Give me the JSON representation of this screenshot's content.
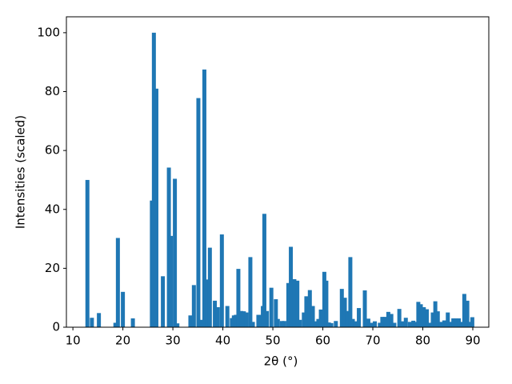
{
  "chart_data": {
    "type": "bar",
    "xlabel": "2θ (°)",
    "ylabel": "Intensities (scaled)",
    "color": "#1f77b4",
    "x": [
      12.9,
      13.8,
      15.2,
      18.5,
      19.0,
      20.0,
      22.0,
      25.8,
      26.2,
      26.7,
      28.0,
      29.2,
      29.6,
      30.4,
      30.9,
      33.5,
      34.2,
      35.1,
      35.6,
      36.3,
      36.9,
      37.4,
      38.4,
      39.0,
      39.8,
      40.9,
      41.8,
      42.2,
      42.6,
      43.1,
      43.7,
      44.2,
      44.7,
      45.5,
      46.0,
      47.1,
      47.6,
      48.0,
      48.3,
      48.8,
      49.7,
      50.6,
      51.0,
      51.8,
      52.3,
      53.1,
      53.6,
      54.3,
      54.9,
      55.4,
      56.2,
      56.7,
      57.4,
      58.0,
      58.6,
      59.1,
      59.6,
      60.3,
      60.7,
      61.2,
      61.7,
      62.6,
      63.8,
      64.4,
      64.9,
      65.5,
      66.0,
      66.5,
      67.2,
      68.4,
      69.1,
      69.7,
      70.4,
      71.4,
      71.9,
      72.5,
      73.1,
      73.7,
      74.3,
      75.3,
      76.0,
      76.6,
      77.4,
      78.1,
      78.6,
      79.1,
      79.6,
      80.2,
      80.8,
      81.5,
      82.0,
      82.5,
      83.0,
      83.6,
      84.3,
      85.0,
      85.6,
      86.1,
      86.6,
      87.2,
      87.8,
      88.3,
      88.9,
      89.4,
      89.9
    ],
    "values": [
      50,
      3.2,
      4.8,
      1.5,
      30.3,
      12,
      3,
      43,
      100,
      81,
      17.3,
      54.2,
      31,
      50.4,
      1.3,
      4,
      14.3,
      77.8,
      2.5,
      87.5,
      16.2,
      27,
      9,
      6.8,
      31.5,
      7.2,
      3.1,
      4,
      4.2,
      19.8,
      5.5,
      5.4,
      5,
      23.8,
      1.8,
      4.2,
      4.2,
      7.2,
      38.5,
      5.5,
      13.4,
      9.5,
      2.8,
      2.1,
      2.1,
      15,
      27.3,
      16.3,
      15.8,
      2.5,
      5,
      10.5,
      12.6,
      7.2,
      2,
      2.8,
      6,
      18.8,
      15.8,
      1.6,
      1.4,
      2.1,
      13,
      10,
      5.5,
      23.8,
      2.8,
      2,
      6.5,
      12.5,
      2.9,
      1.5,
      2,
      1.5,
      3.5,
      3.5,
      5.2,
      4.5,
      1.5,
      6.2,
      2,
      3.2,
      1.8,
      2.2,
      1.8,
      8.6,
      7.8,
      6.8,
      6.1,
      1.5,
      5,
      8.8,
      5.4,
      1.8,
      2.3,
      5,
      1.8,
      3,
      3,
      3,
      1.8,
      11.3,
      9,
      1.8,
      3.4
    ],
    "xlim": [
      8.7,
      93.2
    ],
    "xticks": [
      10,
      20,
      30,
      40,
      50,
      60,
      70,
      80,
      90
    ],
    "ylim": [
      0,
      105.4
    ],
    "yticks": [
      0,
      20,
      40,
      60,
      80,
      100
    ]
  }
}
